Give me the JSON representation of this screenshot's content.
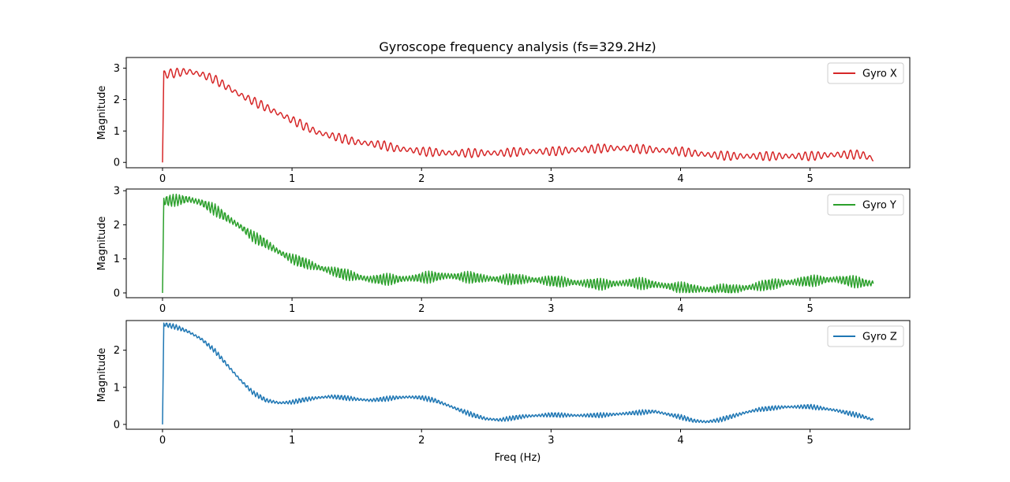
{
  "chart_data": {
    "type": "line",
    "title": "Gyroscope frequency analysis (fs=329.2Hz)",
    "xlabel": "Freq (Hz)",
    "xlim": [
      -0.28,
      5.77
    ],
    "xticks": [
      0,
      1,
      2,
      3,
      4,
      5
    ],
    "grid": false,
    "panels": [
      {
        "ylabel": "Magnitude",
        "ylim": [
          -0.17,
          3.34
        ],
        "yticks": [
          0,
          1,
          2,
          3
        ],
        "legend_position": "upper right",
        "series": [
          {
            "name": "Gyro X",
            "color": "#d62728",
            "x": [
              0,
              0.01,
              0.1,
              0.2,
              0.3,
              0.4,
              0.5,
              0.6,
              0.7,
              0.8,
              0.9,
              1.0,
              1.1,
              1.2,
              1.3,
              1.4,
              1.5,
              1.6,
              1.7,
              1.8,
              1.9,
              2.0,
              2.2,
              2.4,
              2.6,
              2.8,
              3.0,
              3.2,
              3.4,
              3.6,
              3.8,
              4.0,
              4.2,
              4.4,
              4.6,
              4.8,
              5.0,
              5.2,
              5.4,
              5.49
            ],
            "y": [
              0,
              2.8,
              2.85,
              2.9,
              2.8,
              2.65,
              2.4,
              2.15,
              1.95,
              1.75,
              1.55,
              1.35,
              1.15,
              0.95,
              0.85,
              0.75,
              0.65,
              0.6,
              0.55,
              0.45,
              0.4,
              0.35,
              0.3,
              0.3,
              0.3,
              0.35,
              0.35,
              0.4,
              0.45,
              0.45,
              0.4,
              0.35,
              0.25,
              0.2,
              0.2,
              0.2,
              0.2,
              0.25,
              0.25,
              0.1
            ],
            "ripple_amplitude": 0.15,
            "ripple_period_hz": 0.05
          }
        ]
      },
      {
        "ylabel": "Magnitude",
        "ylim": [
          -0.14,
          3.05
        ],
        "yticks": [
          0,
          1,
          2,
          3
        ],
        "legend_position": "upper right",
        "series": [
          {
            "name": "Gyro Y",
            "color": "#2ca02c",
            "x": [
              0,
              0.01,
              0.1,
              0.2,
              0.3,
              0.4,
              0.5,
              0.6,
              0.7,
              0.8,
              0.9,
              1.0,
              1.2,
              1.4,
              1.6,
              1.8,
              2.0,
              2.2,
              2.4,
              2.6,
              2.8,
              3.0,
              3.2,
              3.4,
              3.6,
              3.8,
              4.0,
              4.2,
              4.4,
              4.6,
              4.8,
              5.0,
              5.2,
              5.4,
              5.49
            ],
            "y": [
              0,
              2.7,
              2.72,
              2.75,
              2.65,
              2.45,
              2.2,
              1.95,
              1.65,
              1.45,
              1.2,
              1.0,
              0.75,
              0.55,
              0.4,
              0.4,
              0.45,
              0.5,
              0.45,
              0.4,
              0.4,
              0.35,
              0.3,
              0.25,
              0.3,
              0.25,
              0.15,
              0.1,
              0.1,
              0.2,
              0.3,
              0.35,
              0.4,
              0.3,
              0.28
            ],
            "ripple_amplitude": 0.18,
            "ripple_period_hz": 0.025
          }
        ]
      },
      {
        "ylabel": "Magnitude",
        "ylim": [
          -0.13,
          2.8
        ],
        "yticks": [
          0,
          1,
          2
        ],
        "legend_position": "upper right",
        "series": [
          {
            "name": "Gyro Z",
            "color": "#1f77b4",
            "x": [
              0,
              0.01,
              0.1,
              0.2,
              0.3,
              0.4,
              0.5,
              0.6,
              0.7,
              0.8,
              0.9,
              1.0,
              1.1,
              1.2,
              1.3,
              1.4,
              1.5,
              1.6,
              1.7,
              1.8,
              1.9,
              2.0,
              2.1,
              2.2,
              2.3,
              2.4,
              2.5,
              2.6,
              2.8,
              3.0,
              3.2,
              3.4,
              3.6,
              3.8,
              4.0,
              4.1,
              4.2,
              4.3,
              4.4,
              4.5,
              4.6,
              4.8,
              5.0,
              5.2,
              5.4,
              5.49
            ],
            "y": [
              0,
              2.7,
              2.63,
              2.5,
              2.3,
              2.0,
              1.6,
              1.2,
              0.85,
              0.65,
              0.58,
              0.6,
              0.67,
              0.72,
              0.75,
              0.72,
              0.68,
              0.65,
              0.68,
              0.72,
              0.74,
              0.72,
              0.65,
              0.52,
              0.38,
              0.25,
              0.15,
              0.12,
              0.22,
              0.26,
              0.24,
              0.25,
              0.3,
              0.35,
              0.2,
              0.1,
              0.07,
              0.12,
              0.22,
              0.32,
              0.4,
              0.47,
              0.48,
              0.38,
              0.22,
              0.12
            ],
            "ripple_amplitude": 0.07,
            "ripple_period_hz": 0.025
          }
        ]
      }
    ]
  }
}
